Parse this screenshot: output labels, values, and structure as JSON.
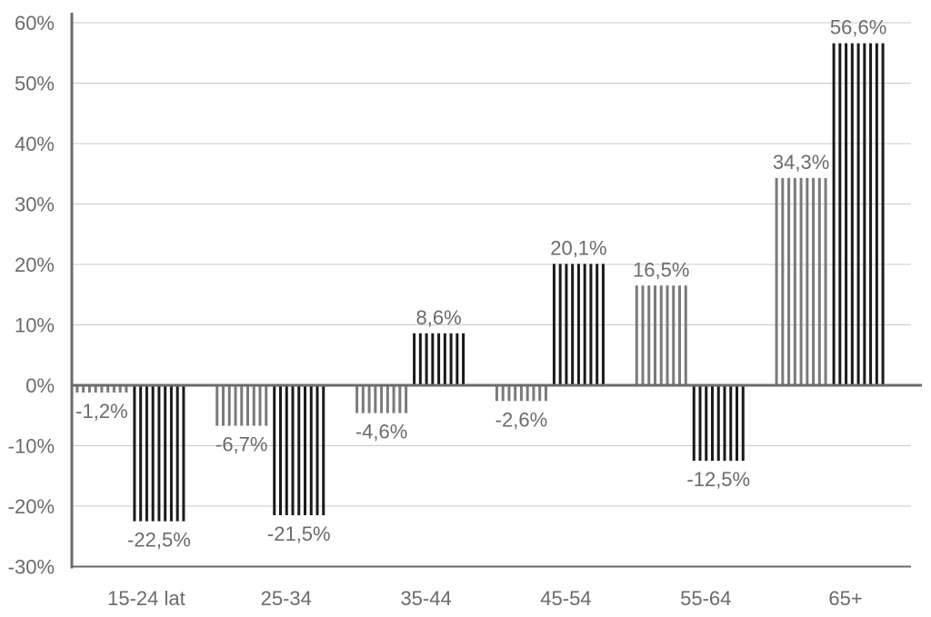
{
  "chart_data": {
    "type": "bar",
    "categories": [
      "15-24 lat",
      "25-34",
      "35-44",
      "45-54",
      "55-64",
      "65+"
    ],
    "series": [
      {
        "values": [
          -1.2,
          -6.7,
          -4.6,
          -2.6,
          16.5,
          34.3
        ],
        "color": "#7a7a7a"
      },
      {
        "values": [
          -22.5,
          -21.5,
          8.6,
          20.1,
          -12.5,
          56.6
        ],
        "color": "#1a1a1a"
      }
    ],
    "value_labels": [
      [
        "-1,2%",
        "-6,7%",
        "-4,6%",
        "-2,6%",
        "16,5%",
        "34,3%"
      ],
      [
        "-22,5%",
        "-21,5%",
        "8,6%",
        "20,1%",
        "-12,5%",
        "56,6%"
      ]
    ],
    "y_ticks": [
      "60%",
      "50%",
      "40%",
      "30%",
      "20%",
      "10%",
      "0%",
      "-10%",
      "-20%",
      "-30%"
    ],
    "y_tick_values": [
      60,
      50,
      40,
      30,
      20,
      10,
      0,
      -10,
      -20,
      -30
    ],
    "ylim": [
      -30,
      60
    ],
    "grid": true,
    "bar_style": "vertical-stripes",
    "title": "",
    "xlabel": "",
    "ylabel": ""
  }
}
